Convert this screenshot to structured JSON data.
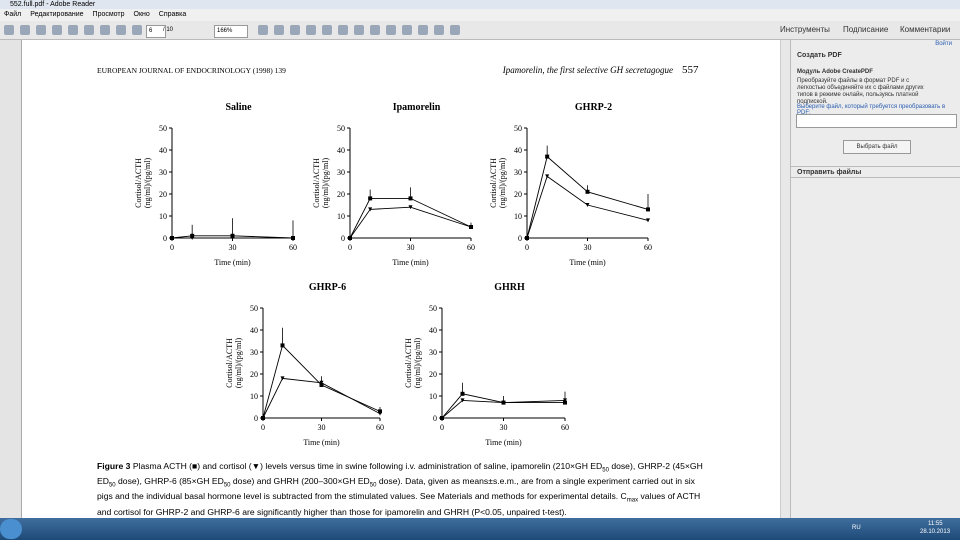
{
  "window": {
    "title": "552.full.pdf - Adobe Reader"
  },
  "menu": [
    "Файл",
    "Редактирование",
    "Просмотр",
    "Окно",
    "Справка"
  ],
  "toolbar": {
    "page": "6",
    "page_total": "/ 10",
    "zoom": "166%"
  },
  "tabs": [
    "Инструменты",
    "Подписание",
    "Комментарии"
  ],
  "sidebar": {
    "login": "Войти",
    "section1": "Создать PDF",
    "heading": "Модуль Adobe CreatePDF",
    "text": "Преобразуйте файлы в формат PDF и с легкостью объединяйте их с файлами других типов в режиме онлайн, пользуясь платной подпиской.",
    "prompt": "Выберите файл, который требуется преобразовать в PDF:",
    "button": "Выбрать файл",
    "section2": "Отправить файлы"
  },
  "page": {
    "header_left": "EUROPEAN JOURNAL OF ENDOCRINOLOGY (1998) 139",
    "header_right": "Ipamorelin, the first selective GH secretagogue",
    "page_number": "557",
    "caption_label": "Figure 3",
    "caption_parts": [
      " Plasma ACTH (■) and cortisol (▼) levels versus time in swine following i.v. administration of saline, ipamorelin (210×GH ED",
      "50",
      " dose), GHRP-2 (45×GH ED",
      "50",
      " dose), GHRP-6 (85×GH ED",
      "50",
      " dose) and GHRH (200–300×GH ED",
      "50",
      " dose). Data, given as means±s.e.m., are from a single experiment carried out in six pigs and the individual basal hormone level is subtracted from the stimulated values. See Materials and methods for experimental details. C",
      "max",
      " values of ACTH and cortisol for GHRP-2 and GHRP-6 are significantly higher than those for ipamorelin and GHRH (P<0.05, unpaired t-test)."
    ]
  },
  "charts": [
    {
      "type": "line",
      "title": "Saline",
      "ylabel": [
        "Cortisol/ACTH",
        "(ng/ml)/(pg/ml)"
      ],
      "xlabel": "Time (min)",
      "x": [
        0,
        10,
        30,
        60
      ],
      "xlim": [
        0,
        60
      ],
      "xticks": [
        0,
        30,
        60
      ],
      "ylim": [
        0,
        50
      ],
      "yticks": [
        0,
        10,
        20,
        30,
        40,
        50
      ],
      "series": [
        {
          "name": "ACTH",
          "marker": "square",
          "values": [
            0,
            1,
            1,
            0
          ],
          "errors": [
            0,
            5,
            8,
            8
          ]
        },
        {
          "name": "cortisol",
          "marker": "triangle",
          "values": [
            0,
            0,
            0,
            0
          ]
        }
      ]
    },
    {
      "type": "line",
      "title": "Ipamorelin",
      "ylabel": [
        "Cortisol/ACTH",
        "(ng/ml)/(pg/ml)"
      ],
      "xlabel": "Time (min)",
      "x": [
        0,
        10,
        30,
        60
      ],
      "xlim": [
        0,
        60
      ],
      "xticks": [
        0,
        30,
        60
      ],
      "ylim": [
        0,
        50
      ],
      "yticks": [
        0,
        10,
        20,
        30,
        40,
        50
      ],
      "series": [
        {
          "name": "ACTH",
          "marker": "square",
          "values": [
            0,
            18,
            18,
            5
          ],
          "errors": [
            0,
            4,
            5,
            2
          ]
        },
        {
          "name": "cortisol",
          "marker": "triangle",
          "values": [
            0,
            13,
            14,
            5
          ]
        }
      ]
    },
    {
      "type": "line",
      "title": "GHRP-2",
      "ylabel": [
        "Cortisol/ACTH",
        "(ng/ml)/(pg/ml)"
      ],
      "xlabel": "Time (min)",
      "x": [
        0,
        10,
        30,
        60
      ],
      "xlim": [
        0,
        60
      ],
      "xticks": [
        0,
        30,
        60
      ],
      "ylim": [
        0,
        50
      ],
      "yticks": [
        0,
        10,
        20,
        30,
        40,
        50
      ],
      "series": [
        {
          "name": "ACTH",
          "marker": "square",
          "values": [
            0,
            37,
            21,
            13
          ],
          "errors": [
            0,
            5,
            3,
            7
          ]
        },
        {
          "name": "cortisol",
          "marker": "triangle",
          "values": [
            0,
            28,
            15,
            8
          ]
        }
      ]
    },
    {
      "type": "line",
      "title": "GHRP-6",
      "ylabel": [
        "Cortisol/ACTH",
        "(ng/ml)/(pg/ml)"
      ],
      "xlabel": "Time (min)",
      "x": [
        0,
        10,
        30,
        60
      ],
      "xlim": [
        0,
        60
      ],
      "xticks": [
        0,
        30,
        60
      ],
      "ylim": [
        0,
        50
      ],
      "yticks": [
        0,
        10,
        20,
        30,
        40,
        50
      ],
      "series": [
        {
          "name": "ACTH",
          "marker": "square",
          "values": [
            0,
            33,
            15,
            3
          ],
          "errors": [
            0,
            8,
            4,
            2
          ]
        },
        {
          "name": "cortisol",
          "marker": "triangle",
          "values": [
            0,
            18,
            16,
            2
          ]
        }
      ]
    },
    {
      "type": "line",
      "title": "GHRH",
      "ylabel": [
        "Cortisol/ACTH",
        "(ng/ml)/(pg/ml)"
      ],
      "xlabel": "Time (min)",
      "x": [
        0,
        10,
        30,
        60
      ],
      "xlim": [
        0,
        60
      ],
      "xticks": [
        0,
        30,
        60
      ],
      "ylim": [
        0,
        50
      ],
      "yticks": [
        0,
        10,
        20,
        30,
        40,
        50
      ],
      "series": [
        {
          "name": "ACTH",
          "marker": "square",
          "values": [
            0,
            11,
            7,
            7
          ],
          "errors": [
            0,
            5,
            3,
            5
          ]
        },
        {
          "name": "cortisol",
          "marker": "triangle",
          "values": [
            0,
            8,
            7,
            8
          ]
        }
      ]
    }
  ],
  "taskbar": {
    "lang": "RU",
    "time": "11:55",
    "date": "28.10.2013"
  }
}
